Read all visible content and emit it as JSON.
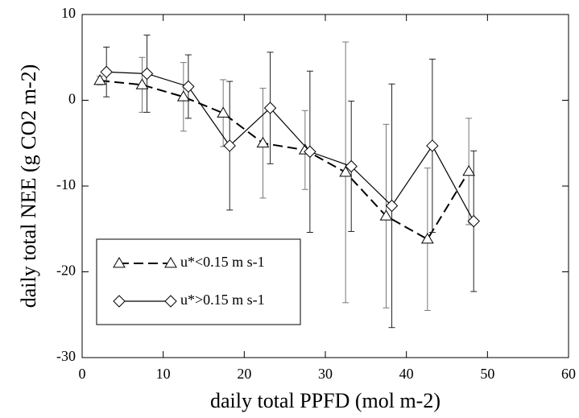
{
  "chart_data": {
    "type": "errorbar-line",
    "x_label": "daily total PPFD (mol m-2)",
    "y_label": "daily total NEE (g CO2 m-2)",
    "xlim": [
      0,
      60
    ],
    "xticks": [
      0,
      10,
      20,
      30,
      40,
      50,
      60
    ],
    "ylim": [
      -30,
      10
    ],
    "yticks": [
      -30,
      -20,
      -10,
      0,
      10
    ],
    "series": [
      {
        "name": "u*<0.15 m s-1",
        "color": "#000000",
        "marker": "triangle",
        "line": "dashed",
        "x": [
          2.2,
          7.4,
          12.5,
          17.4,
          22.3,
          27.5,
          32.5,
          37.5,
          42.6,
          47.7
        ],
        "values": [
          2.3,
          1.8,
          0.4,
          -1.5,
          -5.0,
          -5.8,
          -8.4,
          -13.5,
          -16.2,
          -8.3
        ],
        "errors": [
          0.5,
          3.2,
          4.0,
          3.9,
          6.4,
          4.6,
          15.2,
          10.7,
          8.3,
          6.2
        ]
      },
      {
        "name": "u*>0.15 m s-1",
        "color": "#000000",
        "marker": "diamond",
        "line": "solid",
        "x": [
          3.0,
          8.0,
          13.1,
          18.2,
          23.2,
          28.1,
          33.2,
          38.2,
          43.2,
          48.3
        ],
        "values": [
          3.3,
          3.1,
          1.6,
          -5.3,
          -0.9,
          -6.0,
          -7.7,
          -12.3,
          -5.3,
          -14.1
        ],
        "errors": [
          2.9,
          4.5,
          3.7,
          7.5,
          6.5,
          9.4,
          7.6,
          14.2,
          10.1,
          8.2
        ]
      }
    ]
  }
}
